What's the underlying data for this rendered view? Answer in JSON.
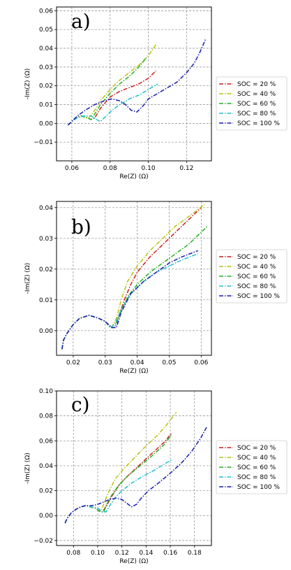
{
  "chart_data": [
    {
      "type": "line",
      "panel_label": "a)",
      "xlabel": "Re(Z) (Ω)",
      "ylabel": "-Im(Z) (Ω)",
      "xlim": [
        0.052,
        0.133
      ],
      "ylim": [
        -0.02,
        0.062
      ],
      "xticks": [
        0.06,
        0.08,
        0.1,
        0.12
      ],
      "xtick_labels": [
        "0.06",
        "0.08",
        "0.10",
        "0.12"
      ],
      "yticks": [
        -0.01,
        0.0,
        0.01,
        0.02,
        0.03,
        0.04,
        0.05,
        0.06
      ],
      "ytick_labels": [
        "−0.01",
        "0.00",
        "0.01",
        "0.02",
        "0.03",
        "0.04",
        "0.05",
        "0.06"
      ],
      "grid": true,
      "legend_position": "outside-right",
      "series": [
        {
          "name": "SOC = 20 %",
          "color": "#cc1f1f",
          "x": [
            0.058,
            0.06,
            0.062,
            0.065,
            0.068,
            0.07,
            0.072,
            0.075,
            0.08,
            0.085,
            0.09,
            0.095,
            0.1,
            0.104
          ],
          "y": [
            -0.001,
            0.001,
            0.003,
            0.004,
            0.003,
            0.002,
            0.003,
            0.008,
            0.014,
            0.017,
            0.019,
            0.021,
            0.024,
            0.028
          ]
        },
        {
          "name": "SOC = 40 %",
          "color": "#b8c213",
          "x": [
            0.058,
            0.06,
            0.062,
            0.065,
            0.067,
            0.069,
            0.072,
            0.075,
            0.08,
            0.085,
            0.09,
            0.095,
            0.1,
            0.104
          ],
          "y": [
            -0.001,
            0.001,
            0.003,
            0.004,
            0.003,
            0.003,
            0.007,
            0.012,
            0.018,
            0.023,
            0.027,
            0.031,
            0.036,
            0.042
          ]
        },
        {
          "name": "SOC = 60 %",
          "color": "#22b022",
          "x": [
            0.058,
            0.06,
            0.062,
            0.065,
            0.068,
            0.07,
            0.072,
            0.075,
            0.08,
            0.085,
            0.09,
            0.095,
            0.099
          ],
          "y": [
            -0.001,
            0.001,
            0.003,
            0.004,
            0.003,
            0.002,
            0.005,
            0.01,
            0.016,
            0.021,
            0.025,
            0.03,
            0.035
          ]
        },
        {
          "name": "SOC = 80 %",
          "color": "#20c0cc",
          "x": [
            0.058,
            0.06,
            0.063,
            0.067,
            0.07,
            0.073,
            0.075,
            0.077,
            0.08,
            0.085,
            0.09,
            0.095,
            0.1,
            0.105
          ],
          "y": [
            -0.001,
            0.001,
            0.003,
            0.004,
            0.004,
            0.002,
            0.001,
            0.003,
            0.006,
            0.01,
            0.013,
            0.015,
            0.018,
            0.021
          ]
        },
        {
          "name": "SOC = 100 %",
          "color": "#1a1ab0",
          "x": [
            0.058,
            0.06,
            0.063,
            0.067,
            0.072,
            0.077,
            0.081,
            0.085,
            0.088,
            0.091,
            0.094,
            0.097,
            0.1,
            0.105,
            0.11,
            0.115,
            0.12,
            0.124,
            0.127,
            0.13
          ],
          "y": [
            -0.001,
            0.001,
            0.004,
            0.007,
            0.01,
            0.012,
            0.013,
            0.012,
            0.01,
            0.007,
            0.006,
            0.009,
            0.013,
            0.016,
            0.019,
            0.022,
            0.027,
            0.032,
            0.038,
            0.045
          ]
        }
      ]
    },
    {
      "type": "line",
      "panel_label": "b)",
      "xlabel": "Re(Z) (Ω)",
      "ylabel": "-Im(Z) (Ω)",
      "xlim": [
        0.0148,
        0.0632
      ],
      "ylim": [
        -0.008,
        0.042
      ],
      "xticks": [
        0.02,
        0.03,
        0.04,
        0.05,
        0.06
      ],
      "xtick_labels": [
        "0.02",
        "0.03",
        "0.04",
        "0.05",
        "0.06"
      ],
      "yticks": [
        0.0,
        0.01,
        0.02,
        0.03,
        0.04
      ],
      "ytick_labels": [
        "0.00",
        "0.01",
        "0.02",
        "0.03",
        "0.04"
      ],
      "grid": true,
      "legend_position": "outside-right",
      "series": [
        {
          "name": "SOC = 20 %",
          "color": "#cc1f1f",
          "x": [
            0.0165,
            0.017,
            0.018,
            0.02,
            0.022,
            0.025,
            0.028,
            0.03,
            0.032,
            0.033,
            0.034,
            0.036,
            0.038,
            0.04,
            0.044,
            0.048,
            0.052,
            0.056,
            0.06
          ],
          "y": [
            -0.006,
            -0.003,
            -0.001,
            0.002,
            0.004,
            0.005,
            0.004,
            0.003,
            0.001,
            0.001,
            0.004,
            0.01,
            0.015,
            0.019,
            0.024,
            0.028,
            0.032,
            0.036,
            0.04
          ]
        },
        {
          "name": "SOC = 40 %",
          "color": "#b8c213",
          "x": [
            0.0165,
            0.017,
            0.018,
            0.02,
            0.022,
            0.025,
            0.028,
            0.03,
            0.032,
            0.0335,
            0.035,
            0.037,
            0.04,
            0.044,
            0.048,
            0.052,
            0.056,
            0.061
          ],
          "y": [
            -0.006,
            -0.003,
            -0.001,
            0.002,
            0.004,
            0.005,
            0.004,
            0.003,
            0.001,
            0.004,
            0.01,
            0.016,
            0.021,
            0.026,
            0.03,
            0.034,
            0.037,
            0.041
          ]
        },
        {
          "name": "SOC = 60 %",
          "color": "#22b022",
          "x": [
            0.0165,
            0.017,
            0.018,
            0.02,
            0.022,
            0.025,
            0.028,
            0.03,
            0.032,
            0.033,
            0.0345,
            0.037,
            0.04,
            0.044,
            0.048,
            0.052,
            0.056,
            0.062
          ],
          "y": [
            -0.006,
            -0.003,
            -0.001,
            0.002,
            0.004,
            0.005,
            0.004,
            0.003,
            0.001,
            0.001,
            0.005,
            0.011,
            0.015,
            0.019,
            0.022,
            0.025,
            0.028,
            0.034
          ]
        },
        {
          "name": "SOC = 80 %",
          "color": "#20c0cc",
          "x": [
            0.0165,
            0.017,
            0.018,
            0.02,
            0.022,
            0.025,
            0.028,
            0.03,
            0.0315,
            0.033,
            0.035,
            0.038,
            0.042,
            0.046,
            0.05,
            0.054,
            0.059
          ],
          "y": [
            -0.006,
            -0.003,
            -0.001,
            0.002,
            0.004,
            0.005,
            0.004,
            0.003,
            0.001,
            0.002,
            0.007,
            0.012,
            0.016,
            0.019,
            0.021,
            0.023,
            0.025
          ]
        },
        {
          "name": "SOC = 100 %",
          "color": "#1a1ab0",
          "x": [
            0.0165,
            0.017,
            0.018,
            0.02,
            0.022,
            0.025,
            0.028,
            0.03,
            0.032,
            0.0335,
            0.035,
            0.038,
            0.042,
            0.046,
            0.05,
            0.054,
            0.059
          ],
          "y": [
            -0.006,
            -0.003,
            -0.001,
            0.002,
            0.004,
            0.005,
            0.004,
            0.003,
            0.001,
            0.001,
            0.006,
            0.012,
            0.016,
            0.019,
            0.022,
            0.024,
            0.026
          ]
        }
      ]
    },
    {
      "type": "line",
      "panel_label": "c)",
      "xlabel": "Re(Z) (Ω)",
      "ylabel": "-Im(Z) (Ω)",
      "xlim": [
        0.066,
        0.194
      ],
      "ylim": [
        -0.024,
        0.1
      ],
      "xticks": [
        0.08,
        0.1,
        0.12,
        0.14,
        0.16,
        0.18
      ],
      "xtick_labels": [
        "0.08",
        "0.10",
        "0.12",
        "0.14",
        "0.16",
        "0.18"
      ],
      "yticks": [
        -0.02,
        0.0,
        0.02,
        0.04,
        0.06,
        0.08,
        0.1
      ],
      "ytick_labels": [
        "−0.02",
        "0.00",
        "0.02",
        "0.04",
        "0.06",
        "0.08",
        "0.10"
      ],
      "grid": true,
      "legend_position": "outside-right",
      "series": [
        {
          "name": "SOC = 20 %",
          "color": "#cc1f1f",
          "x": [
            0.073,
            0.075,
            0.078,
            0.082,
            0.086,
            0.09,
            0.094,
            0.098,
            0.101,
            0.104,
            0.108,
            0.112,
            0.118,
            0.125,
            0.135,
            0.145,
            0.155,
            0.161
          ],
          "y": [
            -0.006,
            -0.002,
            0.002,
            0.005,
            0.007,
            0.008,
            0.007,
            0.006,
            0.004,
            0.003,
            0.009,
            0.016,
            0.025,
            0.032,
            0.041,
            0.05,
            0.059,
            0.066
          ]
        },
        {
          "name": "SOC = 40 %",
          "color": "#b8c213",
          "x": [
            0.073,
            0.075,
            0.078,
            0.082,
            0.086,
            0.09,
            0.094,
            0.098,
            0.101,
            0.103,
            0.106,
            0.11,
            0.115,
            0.122,
            0.13,
            0.14,
            0.15,
            0.158,
            0.165
          ],
          "y": [
            -0.006,
            -0.002,
            0.002,
            0.005,
            0.007,
            0.008,
            0.007,
            0.006,
            0.004,
            0.004,
            0.012,
            0.021,
            0.03,
            0.038,
            0.046,
            0.056,
            0.065,
            0.074,
            0.083
          ]
        },
        {
          "name": "SOC = 60 %",
          "color": "#22b022",
          "x": [
            0.073,
            0.075,
            0.078,
            0.082,
            0.086,
            0.09,
            0.094,
            0.098,
            0.102,
            0.105,
            0.108,
            0.112,
            0.118,
            0.125,
            0.135,
            0.145,
            0.155,
            0.161
          ],
          "y": [
            -0.006,
            -0.002,
            0.002,
            0.005,
            0.007,
            0.008,
            0.007,
            0.006,
            0.003,
            0.003,
            0.01,
            0.017,
            0.025,
            0.032,
            0.04,
            0.048,
            0.057,
            0.065
          ]
        },
        {
          "name": "SOC = 80 %",
          "color": "#20c0cc",
          "x": [
            0.073,
            0.075,
            0.078,
            0.082,
            0.086,
            0.09,
            0.095,
            0.1,
            0.104,
            0.107,
            0.11,
            0.114,
            0.12,
            0.128,
            0.138,
            0.148,
            0.156,
            0.162
          ],
          "y": [
            -0.006,
            -0.002,
            0.002,
            0.005,
            0.007,
            0.008,
            0.007,
            0.006,
            0.003,
            0.003,
            0.008,
            0.014,
            0.02,
            0.026,
            0.032,
            0.037,
            0.042,
            0.045
          ]
        },
        {
          "name": "SOC = 100 %",
          "color": "#1a1ab0",
          "x": [
            0.073,
            0.075,
            0.078,
            0.082,
            0.086,
            0.09,
            0.095,
            0.1,
            0.105,
            0.11,
            0.115,
            0.12,
            0.124,
            0.128,
            0.132,
            0.136,
            0.142,
            0.15,
            0.16,
            0.17,
            0.178,
            0.185,
            0.19
          ],
          "y": [
            -0.006,
            -0.002,
            0.002,
            0.005,
            0.007,
            0.008,
            0.008,
            0.009,
            0.011,
            0.013,
            0.014,
            0.013,
            0.01,
            0.007,
            0.009,
            0.014,
            0.02,
            0.026,
            0.034,
            0.043,
            0.052,
            0.062,
            0.071
          ]
        }
      ]
    }
  ]
}
